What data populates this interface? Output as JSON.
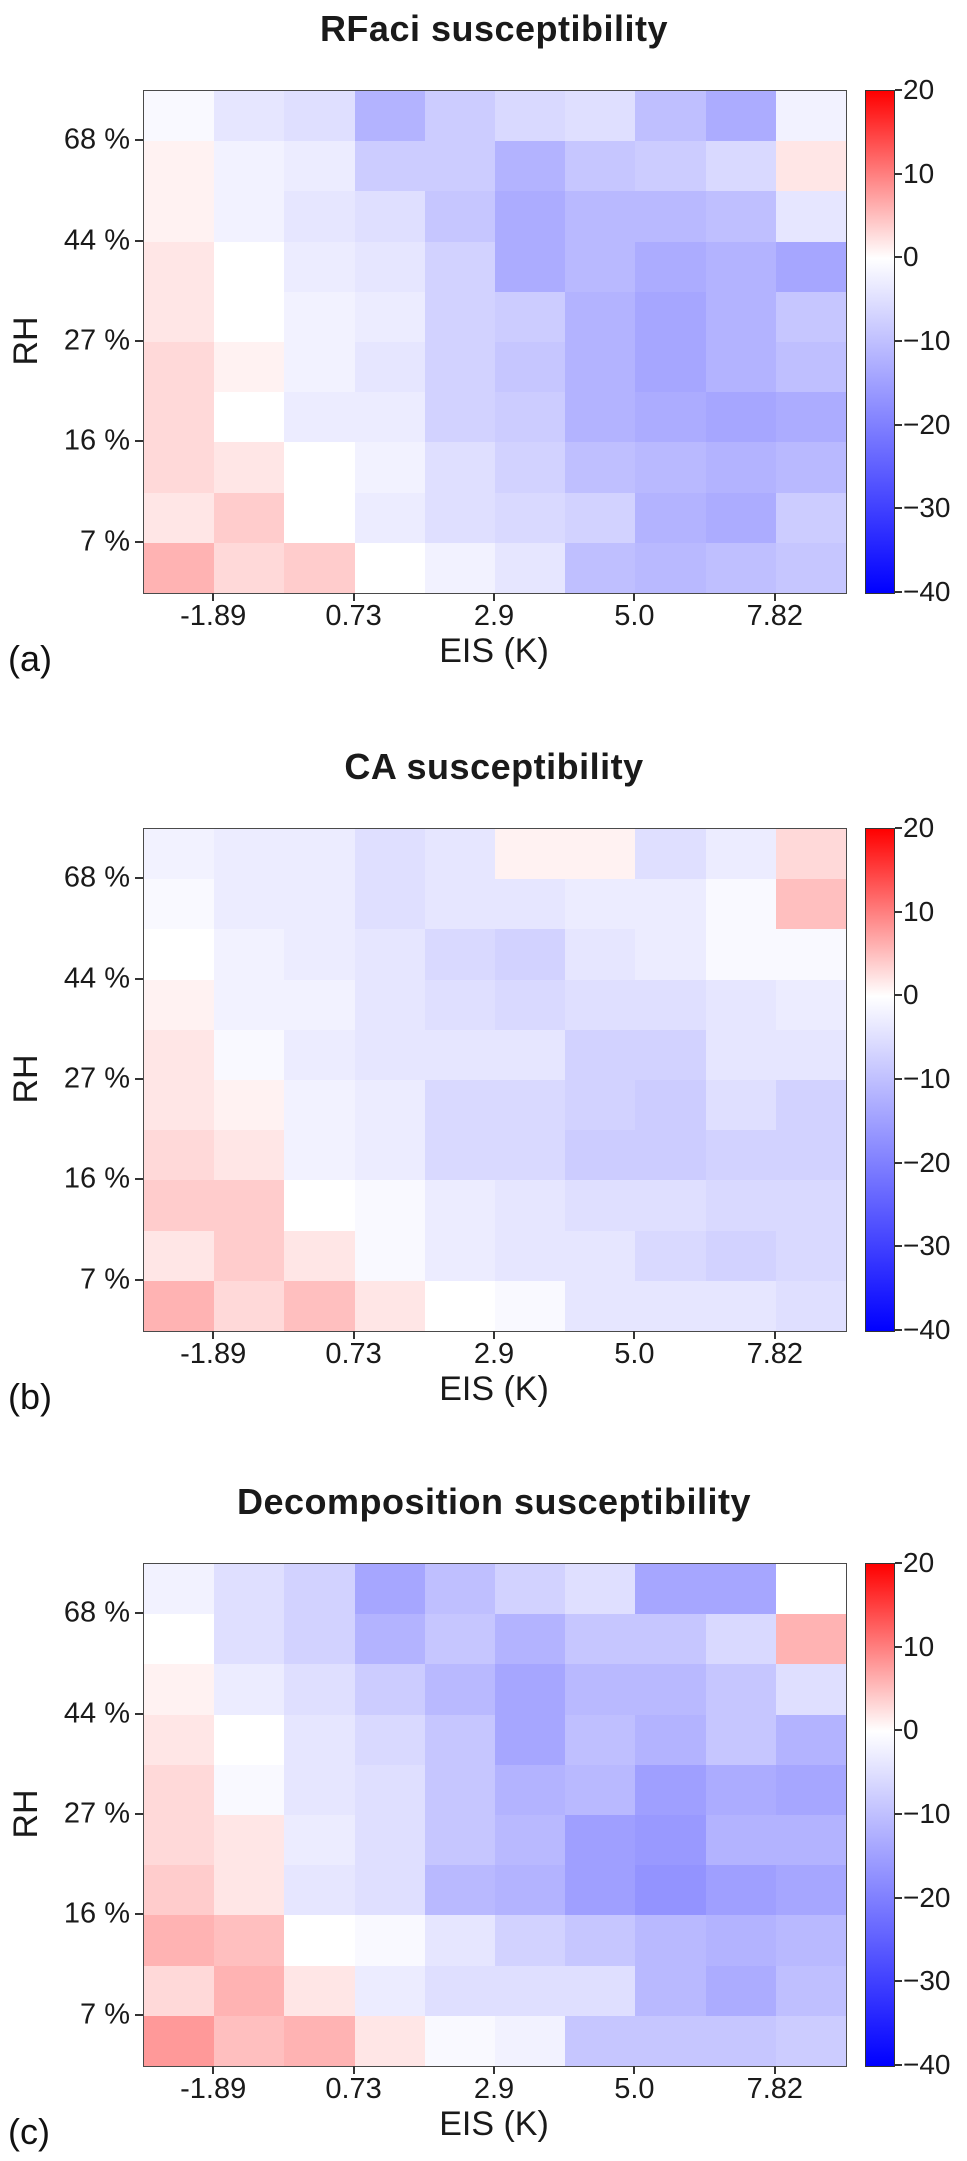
{
  "figure": {
    "background": "#ffffff",
    "panel_letters": [
      "(a)",
      "(b)",
      "(c)"
    ]
  },
  "colorbar": {
    "tick_labels": [
      "20",
      "10",
      "0",
      "−10",
      "−20",
      "−30",
      "−40"
    ],
    "vmax": 20,
    "vcenter": 0,
    "vmin": -40,
    "top_color": "#ff0000",
    "center_color": "#ffffff",
    "bottom_color": "#0000ff",
    "position": "right"
  },
  "chart_data": [
    {
      "type": "heatmap",
      "panel_label": "(a)",
      "title": "RFaci susceptibility",
      "xlabel": "EIS (K)",
      "ylabel": "RH",
      "x_tick_labels": [
        "-1.89",
        "0.73",
        "2.9",
        "5.0",
        "7.82"
      ],
      "y_tick_labels": [
        "68 %",
        "44 %",
        "27 %",
        "16 %",
        "7 %"
      ],
      "grid_rows": 10,
      "grid_cols": 10,
      "colormap": {
        "type": "diverging",
        "vmin": -40,
        "vcenter": 0,
        "vmax": 20,
        "neg_color": "#0000ff",
        "center_color": "#ffffff",
        "pos_color": "#ff0000"
      },
      "colorbar_ticks": [
        20,
        10,
        0,
        -10,
        -20,
        -30,
        -40
      ],
      "values_note": "rows top-to-bottom (high RH to low RH), cols left-to-right (low EIS to high EIS), units match colorbar",
      "values": [
        [
          -1,
          -4,
          -5,
          -12,
          -8,
          -6,
          -5,
          -10,
          -13,
          -2
        ],
        [
          1,
          -2,
          -3,
          -8,
          -8,
          -12,
          -9,
          -8,
          -6,
          2
        ],
        [
          1,
          -2,
          -4,
          -5,
          -9,
          -13,
          -11,
          -11,
          -10,
          -4
        ],
        [
          2,
          0,
          -3,
          -4,
          -7,
          -13,
          -11,
          -13,
          -12,
          -14
        ],
        [
          2,
          0,
          -2,
          -3,
          -7,
          -8,
          -12,
          -14,
          -12,
          -9
        ],
        [
          3,
          1,
          -2,
          -4,
          -7,
          -9,
          -12,
          -14,
          -12,
          -10
        ],
        [
          3,
          0,
          -3,
          -3,
          -7,
          -8,
          -12,
          -13,
          -14,
          -13
        ],
        [
          3,
          2,
          0,
          -2,
          -5,
          -7,
          -10,
          -11,
          -12,
          -11
        ],
        [
          2,
          4,
          0,
          -3,
          -5,
          -6,
          -7,
          -12,
          -13,
          -8
        ],
        [
          6,
          3,
          4,
          0,
          -2,
          -4,
          -10,
          -11,
          -10,
          -9
        ]
      ]
    },
    {
      "type": "heatmap",
      "panel_label": "(b)",
      "title": "CA susceptibility",
      "xlabel": "EIS (K)",
      "ylabel": "RH",
      "x_tick_labels": [
        "-1.89",
        "0.73",
        "2.9",
        "5.0",
        "7.82"
      ],
      "y_tick_labels": [
        "68 %",
        "44 %",
        "27 %",
        "16 %",
        "7 %"
      ],
      "grid_rows": 10,
      "grid_cols": 10,
      "colormap": {
        "type": "diverging",
        "vmin": -40,
        "vcenter": 0,
        "vmax": 20,
        "neg_color": "#0000ff",
        "center_color": "#ffffff",
        "pos_color": "#ff0000"
      },
      "colorbar_ticks": [
        20,
        10,
        0,
        -10,
        -20,
        -30,
        -40
      ],
      "values_note": "rows top-to-bottom (high RH to low RH), cols left-to-right (low EIS to high EIS), units match colorbar",
      "values": [
        [
          -2,
          -3,
          -3,
          -5,
          -4,
          1,
          1,
          -5,
          -3,
          3
        ],
        [
          -1,
          -3,
          -3,
          -5,
          -4,
          -4,
          -3,
          -3,
          -1,
          5
        ],
        [
          0,
          -2,
          -3,
          -4,
          -6,
          -7,
          -4,
          -3,
          -1,
          -1
        ],
        [
          1,
          -2,
          -2,
          -4,
          -5,
          -6,
          -5,
          -5,
          -4,
          -3
        ],
        [
          2,
          -1,
          -3,
          -4,
          -4,
          -4,
          -7,
          -7,
          -4,
          -4
        ],
        [
          2,
          1,
          -2,
          -3,
          -6,
          -6,
          -7,
          -8,
          -5,
          -7
        ],
        [
          3,
          2,
          -2,
          -3,
          -6,
          -6,
          -8,
          -8,
          -7,
          -7
        ],
        [
          4,
          4,
          0,
          -1,
          -3,
          -4,
          -5,
          -5,
          -6,
          -6
        ],
        [
          2,
          4,
          2,
          -1,
          -3,
          -4,
          -4,
          -6,
          -7,
          -6
        ],
        [
          6,
          3,
          5,
          2,
          0,
          -1,
          -4,
          -4,
          -4,
          -5
        ]
      ]
    },
    {
      "type": "heatmap",
      "panel_label": "(c)",
      "title": "Decomposition susceptibility",
      "xlabel": "EIS (K)",
      "ylabel": "RH",
      "x_tick_labels": [
        "-1.89",
        "0.73",
        "2.9",
        "5.0",
        "7.82"
      ],
      "y_tick_labels": [
        "68 %",
        "44 %",
        "27 %",
        "16 %",
        "7 %"
      ],
      "grid_rows": 10,
      "grid_cols": 10,
      "colormap": {
        "type": "diverging",
        "vmin": -40,
        "vcenter": 0,
        "vmax": 20,
        "neg_color": "#0000ff",
        "center_color": "#ffffff",
        "pos_color": "#ff0000"
      },
      "colorbar_ticks": [
        20,
        10,
        0,
        -10,
        -20,
        -30,
        -40
      ],
      "values_note": "rows top-to-bottom (high RH to low RH), cols left-to-right (low EIS to high EIS), units match colorbar",
      "values": [
        [
          -2,
          -5,
          -7,
          -14,
          -10,
          -7,
          -5,
          -14,
          -14,
          0
        ],
        [
          0,
          -5,
          -7,
          -12,
          -9,
          -12,
          -9,
          -9,
          -6,
          6
        ],
        [
          1,
          -3,
          -5,
          -8,
          -11,
          -14,
          -11,
          -11,
          -9,
          -5
        ],
        [
          2,
          0,
          -4,
          -6,
          -9,
          -14,
          -10,
          -12,
          -9,
          -12
        ],
        [
          3,
          -1,
          -4,
          -5,
          -9,
          -12,
          -11,
          -15,
          -13,
          -14
        ],
        [
          3,
          2,
          -3,
          -5,
          -9,
          -11,
          -15,
          -16,
          -12,
          -12
        ],
        [
          4,
          2,
          -4,
          -5,
          -11,
          -12,
          -15,
          -17,
          -15,
          -14
        ],
        [
          6,
          5,
          0,
          -1,
          -4,
          -7,
          -9,
          -11,
          -12,
          -11
        ],
        [
          3,
          6,
          2,
          -3,
          -5,
          -5,
          -5,
          -11,
          -13,
          -10
        ],
        [
          8,
          5,
          6,
          2,
          -1,
          -2,
          -9,
          -9,
          -9,
          -8
        ]
      ]
    }
  ]
}
